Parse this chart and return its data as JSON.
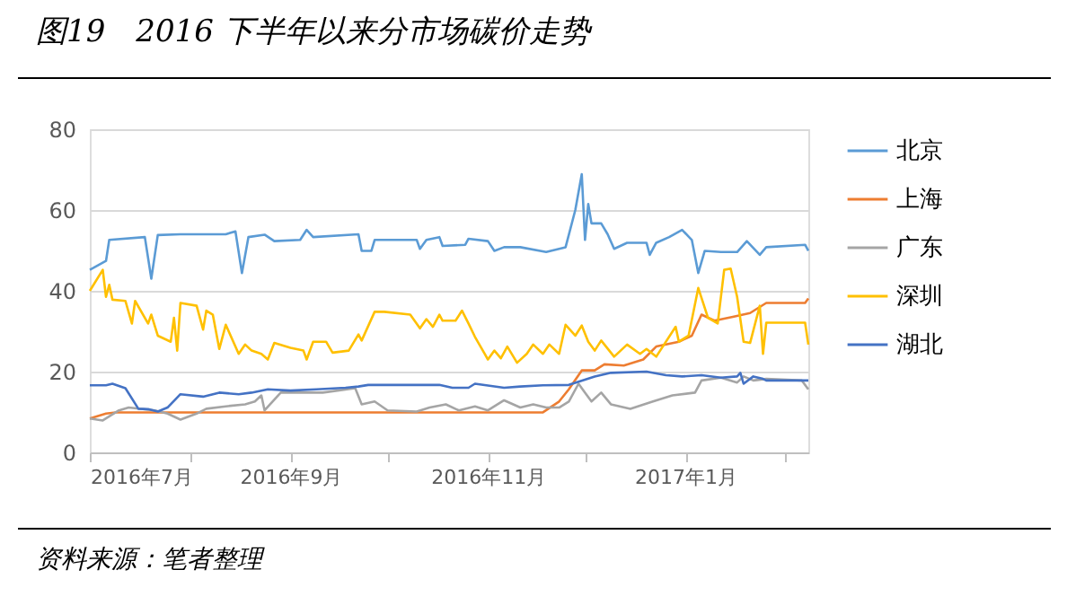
{
  "chart_data": {
    "type": "line",
    "title": "图19　2016 下半年以来分市场碳价走势",
    "annotations": [
      "资料来源：笔者整理"
    ],
    "xlim": [
      "2016-07-01",
      "2017-02-08"
    ],
    "xticks": [
      {
        "value": "2016-07-01",
        "label": "2016年7月"
      },
      {
        "value": "2016-08-01",
        "label": null
      },
      {
        "value": "2016-09-01",
        "label": "2016年9月"
      },
      {
        "value": "2016-10-01",
        "label": null
      },
      {
        "value": "2016-11-01",
        "label": "2016年11月"
      },
      {
        "value": "2016-12-01",
        "label": null
      },
      {
        "value": "2017-01-01",
        "label": "2017年1月"
      },
      {
        "value": "2017-02-01",
        "label": null
      }
    ],
    "ylim": [
      0,
      80
    ],
    "yticks": [
      0,
      20,
      40,
      60,
      80
    ],
    "grid": "y",
    "legend": "right",
    "series": [
      {
        "name": "北京",
        "color": "#5b9bd5",
        "x": [
          "2016-07-01",
          "2016-07-06",
          "2016-07-07",
          "2016-07-18",
          "2016-07-20",
          "2016-07-22",
          "2016-07-29",
          "2016-08-12",
          "2016-08-15",
          "2016-08-17",
          "2016-08-19",
          "2016-08-24",
          "2016-08-27",
          "2016-09-04",
          "2016-09-06",
          "2016-09-08",
          "2016-09-22",
          "2016-09-23",
          "2016-09-26",
          "2016-09-27",
          "2016-10-10",
          "2016-10-11",
          "2016-10-13",
          "2016-10-17",
          "2016-10-18",
          "2016-10-25",
          "2016-10-26",
          "2016-11-01",
          "2016-11-03",
          "2016-11-06",
          "2016-11-11",
          "2016-11-19",
          "2016-11-25",
          "2016-11-28",
          "2016-11-30",
          "2016-12-01",
          "2016-12-02",
          "2016-12-03",
          "2016-12-06",
          "2016-12-08",
          "2016-12-10",
          "2016-12-14",
          "2016-12-20",
          "2016-12-21",
          "2016-12-23",
          "2016-12-27",
          "2016-12-31",
          "2017-01-03",
          "2017-01-05",
          "2017-01-07",
          "2017-01-12",
          "2017-01-17",
          "2017-01-20",
          "2017-01-24",
          "2017-01-26",
          "2017-02-07",
          "2017-02-08"
        ],
        "values": [
          45.2,
          47.4,
          52.6,
          53.3,
          43,
          53.8,
          54,
          54,
          54.7,
          44.4,
          53.3,
          53.9,
          52.3,
          52.6,
          55.1,
          53.3,
          54,
          49.9,
          49.9,
          52.6,
          52.6,
          50.4,
          52.6,
          53.3,
          51.1,
          51.4,
          52.9,
          52.3,
          49.9,
          50.8,
          50.8,
          49.6,
          50.8,
          60,
          68.9,
          52.6,
          61.5,
          56.7,
          56.7,
          54,
          50.4,
          51.9,
          51.9,
          48.9,
          51.9,
          53.3,
          55.1,
          52.6,
          44.4,
          49.9,
          49.6,
          49.6,
          52.3,
          48.9,
          50.8,
          51.4,
          49.9
        ]
      },
      {
        "name": "上海",
        "color": "#ed7d31",
        "x": [
          "2016-07-01",
          "2016-07-06",
          "2016-07-09",
          "2016-11-18",
          "2016-11-23",
          "2016-11-26",
          "2016-11-30",
          "2016-12-04",
          "2016-12-07",
          "2016-12-13",
          "2016-12-19",
          "2016-12-23",
          "2016-12-30",
          "2017-01-03",
          "2017-01-06",
          "2017-01-10",
          "2017-01-16",
          "2017-01-21",
          "2017-01-26",
          "2017-02-07",
          "2017-02-08"
        ],
        "values": [
          8.4,
          9.6,
          9.9,
          9.9,
          12.6,
          15.6,
          20.3,
          20.3,
          21.8,
          21.5,
          23,
          26.2,
          27.4,
          28.9,
          34.1,
          32.6,
          33.6,
          34.5,
          37,
          37,
          38.1
        ]
      },
      {
        "name": "广东",
        "color": "#a5a5a5",
        "x": [
          "2016-07-01",
          "2016-07-05",
          "2016-07-07",
          "2016-07-10",
          "2016-07-13",
          "2016-07-21",
          "2016-07-25",
          "2016-07-29",
          "2016-08-03",
          "2016-08-06",
          "2016-08-12",
          "2016-08-18",
          "2016-08-21",
          "2016-08-23",
          "2016-08-24",
          "2016-08-29",
          "2016-09-11",
          "2016-09-21",
          "2016-09-23",
          "2016-09-27",
          "2016-10-01",
          "2016-10-10",
          "2016-10-14",
          "2016-10-19",
          "2016-10-23",
          "2016-10-28",
          "2016-11-01",
          "2016-11-06",
          "2016-11-11",
          "2016-11-15",
          "2016-11-19",
          "2016-11-23",
          "2016-11-26",
          "2016-11-29",
          "2016-12-01",
          "2016-12-03",
          "2016-12-06",
          "2016-12-09",
          "2016-12-15",
          "2016-12-22",
          "2016-12-28",
          "2017-01-04",
          "2017-01-06",
          "2017-01-12",
          "2017-01-17",
          "2017-01-19",
          "2017-01-22",
          "2017-01-26",
          "2017-02-06",
          "2017-02-08"
        ],
        "values": [
          8.4,
          7.9,
          8.9,
          10.4,
          11.1,
          10.4,
          9.6,
          8.1,
          9.6,
          10.8,
          11.4,
          11.9,
          12.6,
          14.1,
          10.4,
          14.8,
          14.8,
          15.9,
          11.9,
          12.6,
          10.4,
          10.1,
          11.1,
          11.9,
          10.4,
          11.4,
          10.4,
          12.9,
          11.1,
          11.9,
          11.1,
          11.1,
          12.6,
          17,
          14.8,
          12.6,
          14.8,
          11.9,
          10.8,
          12.6,
          14.1,
          14.8,
          17.8,
          18.5,
          17.3,
          18.8,
          17.8,
          18.2,
          17.8,
          15.6
        ]
      },
      {
        "name": "深圳",
        "color": "#ffc000",
        "x": [
          "2016-07-01",
          "2016-07-05",
          "2016-07-06",
          "2016-07-07",
          "2016-07-08",
          "2016-07-12",
          "2016-07-14",
          "2016-07-15",
          "2016-07-19",
          "2016-07-20",
          "2016-07-22",
          "2016-07-26",
          "2016-07-27",
          "2016-07-28",
          "2016-07-29",
          "2016-08-03",
          "2016-08-05",
          "2016-08-06",
          "2016-08-08",
          "2016-08-10",
          "2016-08-12",
          "2016-08-16",
          "2016-08-18",
          "2016-08-20",
          "2016-08-23",
          "2016-08-25",
          "2016-08-27",
          "2016-09-01",
          "2016-09-05",
          "2016-09-06",
          "2016-09-08",
          "2016-09-12",
          "2016-09-14",
          "2016-09-19",
          "2016-09-22",
          "2016-09-23",
          "2016-09-27",
          "2016-09-30",
          "2016-10-08",
          "2016-10-11",
          "2016-10-13",
          "2016-10-15",
          "2016-10-17",
          "2016-10-18",
          "2016-10-22",
          "2016-10-24",
          "2016-10-26",
          "2016-10-28",
          "2016-10-31",
          "2016-11-01",
          "2016-11-03",
          "2016-11-05",
          "2016-11-07",
          "2016-11-10",
          "2016-11-13",
          "2016-11-15",
          "2016-11-18",
          "2016-11-20",
          "2016-11-23",
          "2016-11-25",
          "2016-11-28",
          "2016-11-30",
          "2016-12-02",
          "2016-12-04",
          "2016-12-06",
          "2016-12-10",
          "2016-12-14",
          "2016-12-18",
          "2016-12-20",
          "2016-12-23",
          "2016-12-29",
          "2016-12-30",
          "2017-01-02",
          "2017-01-05",
          "2017-01-08",
          "2017-01-11",
          "2017-01-13",
          "2017-01-15",
          "2017-01-17",
          "2017-01-19",
          "2017-01-21",
          "2017-01-24",
          "2017-01-25",
          "2017-01-26",
          "2017-02-07",
          "2017-02-08"
        ],
        "values": [
          40,
          45.2,
          38.5,
          41.5,
          37.8,
          37.5,
          31.9,
          37.5,
          31.9,
          34.1,
          28.9,
          27.4,
          33.3,
          25.2,
          37,
          36.3,
          30.4,
          35.1,
          34.1,
          25.6,
          31.6,
          24.4,
          26.7,
          25.2,
          24.4,
          23,
          27.1,
          25.9,
          25.2,
          23,
          27.4,
          27.4,
          24.7,
          25.2,
          29.2,
          27.7,
          34.8,
          34.8,
          34.1,
          30.7,
          33,
          31.1,
          34.1,
          32.6,
          32.6,
          35.1,
          31.9,
          28.6,
          24.4,
          23,
          25.2,
          23.3,
          26.2,
          22.2,
          24.4,
          26.7,
          24.4,
          26.7,
          24.4,
          31.6,
          28.9,
          31.4,
          27.4,
          25.2,
          27.7,
          23.7,
          26.7,
          24.4,
          25.6,
          23.7,
          31.1,
          27.4,
          28.9,
          40.7,
          33.3,
          31.9,
          45.2,
          45.5,
          38.5,
          27.4,
          27.1,
          36.3,
          24.4,
          32.1,
          32.1,
          26.7
        ]
      },
      {
        "name": "湖北",
        "color": "#4472c4",
        "x": [
          "2016-07-01",
          "2016-07-06",
          "2016-07-08",
          "2016-07-12",
          "2016-07-16",
          "2016-07-19",
          "2016-07-22",
          "2016-07-25",
          "2016-07-29",
          "2016-08-05",
          "2016-08-10",
          "2016-08-16",
          "2016-08-20",
          "2016-08-25",
          "2016-09-01",
          "2016-09-09",
          "2016-09-18",
          "2016-09-22",
          "2016-09-25",
          "2016-10-17",
          "2016-10-21",
          "2016-10-26",
          "2016-10-28",
          "2016-11-06",
          "2016-11-11",
          "2016-11-18",
          "2016-11-26",
          "2016-12-04",
          "2016-12-09",
          "2016-12-20",
          "2016-12-26",
          "2016-12-31",
          "2017-01-06",
          "2017-01-12",
          "2017-01-17",
          "2017-01-18",
          "2017-01-19",
          "2017-01-22",
          "2017-01-25",
          "2017-01-26",
          "2017-02-08"
        ],
        "values": [
          16.6,
          16.6,
          17,
          15.9,
          10.8,
          10.7,
          10.1,
          11.1,
          14.4,
          13.8,
          14.8,
          14.4,
          14.8,
          15.6,
          15.3,
          15.6,
          16,
          16.3,
          16.7,
          16.7,
          16,
          16,
          17,
          16,
          16.3,
          16.6,
          16.7,
          18.8,
          19.7,
          20,
          19.1,
          18.8,
          19.1,
          18.5,
          18.8,
          19.7,
          17,
          18.8,
          18.2,
          17.8,
          17.8
        ]
      }
    ]
  }
}
